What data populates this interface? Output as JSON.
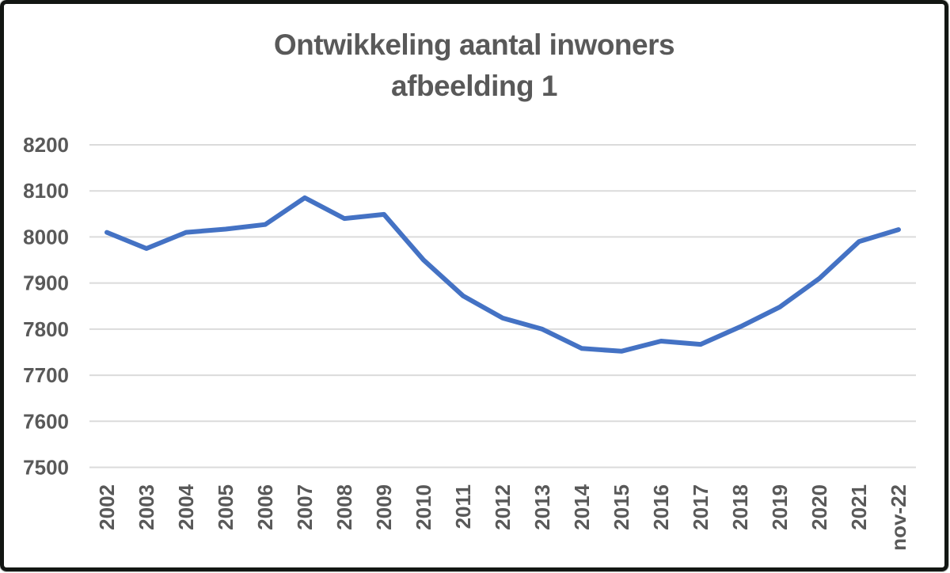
{
  "chart": {
    "title_line1": "Ontwikkeling aantal inwoners",
    "title_line2": "afbeelding 1"
  },
  "chart_data": {
    "type": "line",
    "title": "Ontwikkeling aantal inwoners afbeelding 1",
    "xlabel": "",
    "ylabel": "",
    "categories": [
      "2002",
      "2003",
      "2004",
      "2005",
      "2006",
      "2007",
      "2008",
      "2009",
      "2010",
      "2011",
      "2012",
      "2013",
      "2014",
      "2015",
      "2016",
      "2017",
      "2018",
      "2019",
      "2020",
      "2021",
      "nov-22"
    ],
    "series": [
      {
        "name": "aantal inwoners",
        "values": [
          8010,
          7975,
          8010,
          8017,
          8027,
          8085,
          8040,
          8049,
          7950,
          7872,
          7824,
          7800,
          7758,
          7752,
          7774,
          7767,
          7805,
          7848,
          7910,
          7990,
          8016
        ]
      }
    ],
    "ylim": [
      7500,
      8200
    ],
    "ytick_interval": 100,
    "grid": "horizontal-only",
    "legend": "none",
    "colors": {
      "line": "#4472C4",
      "gridline": "#DBDBDB",
      "text": "#595959",
      "border": "#131613",
      "background": "#FFFFFF"
    }
  }
}
